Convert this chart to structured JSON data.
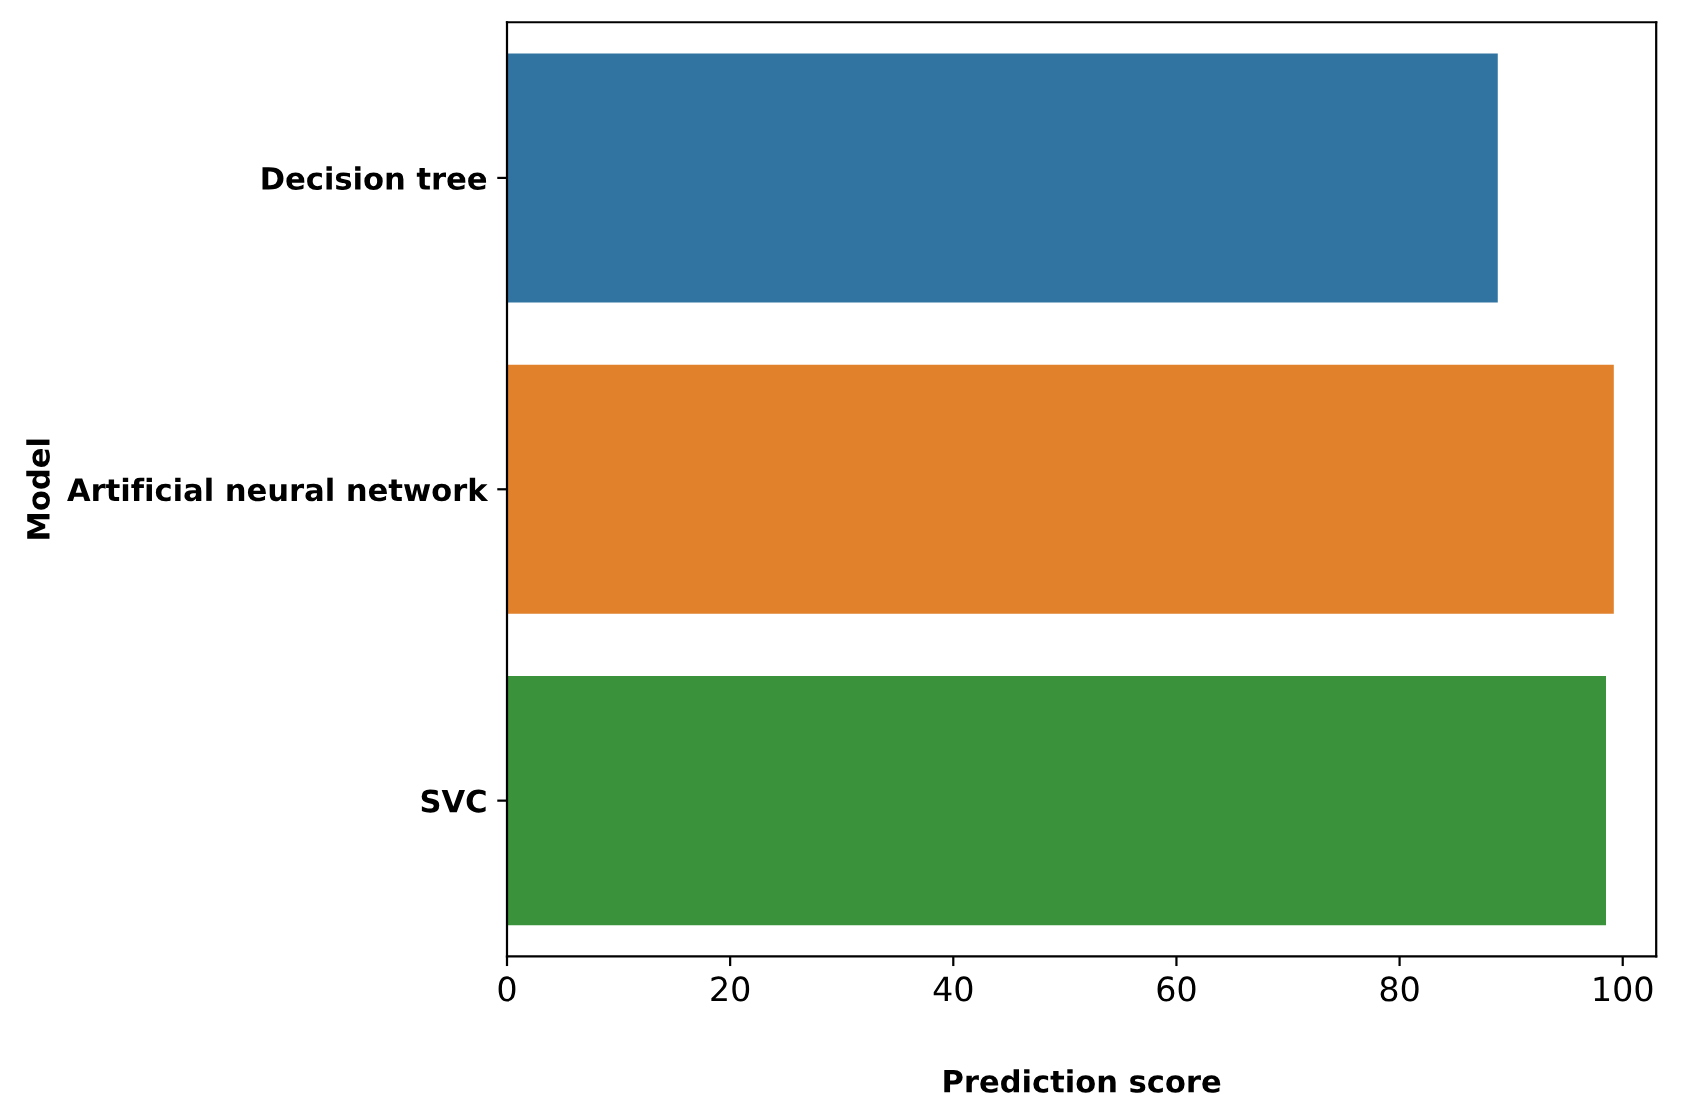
{
  "chart_data": {
    "type": "bar",
    "orientation": "horizontal",
    "xlabel": "Prediction score",
    "ylabel": "Model",
    "categories": [
      "Decision tree",
      "Artificial neural network",
      "SVC"
    ],
    "values": [
      88.8,
      99.2,
      98.5
    ],
    "colors": [
      "#3274a1",
      "#e1812c",
      "#3a923a"
    ],
    "xlim": [
      0,
      103
    ],
    "xticks": [
      0,
      20,
      40,
      60,
      80,
      100
    ],
    "grid": false,
    "legend": false
  }
}
